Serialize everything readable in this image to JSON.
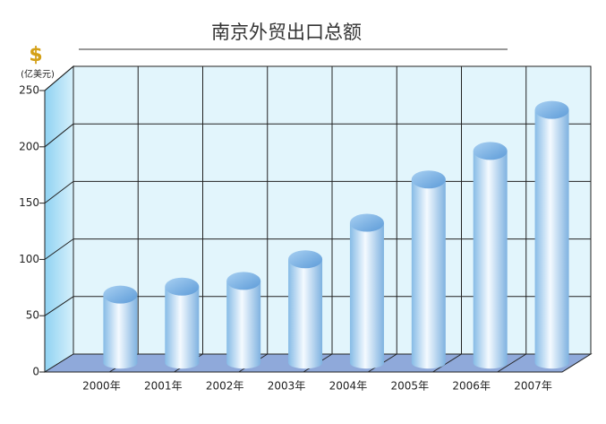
{
  "chart_data": {
    "type": "bar",
    "title": "南京外贸出口总额",
    "y_unit_symbol": "$",
    "y_unit": "(亿美元)",
    "categories": [
      "2000年",
      "2001年",
      "2002年",
      "2003年",
      "2004年",
      "2005年",
      "2006年",
      "2007年"
    ],
    "values": [
      60,
      67,
      72,
      91,
      123,
      161,
      186,
      222
    ],
    "ylim": [
      0,
      250
    ],
    "yticks": [
      0,
      50,
      100,
      150,
      200,
      250
    ],
    "grid": true
  }
}
